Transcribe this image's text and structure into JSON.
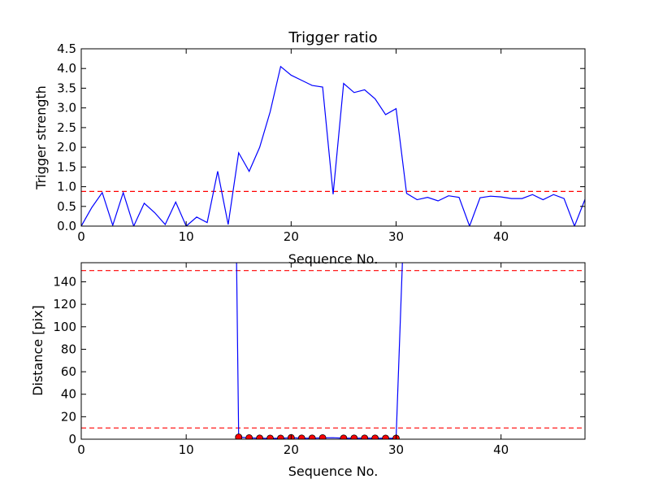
{
  "chart_data": [
    {
      "type": "line",
      "title": "Trigger ratio",
      "xlabel": "Sequence No.",
      "ylabel": "Trigger strength",
      "xlim": [
        0,
        48
      ],
      "ylim": [
        0,
        4.5
      ],
      "xticks": [
        0,
        10,
        20,
        30,
        40
      ],
      "xtick_labels": [
        "0",
        "10",
        "20",
        "30",
        "40"
      ],
      "yticks": [
        0,
        0.5,
        1,
        1.5,
        2,
        2.5,
        3,
        3.5,
        4,
        4.5
      ],
      "ytick_labels": [
        "0.0",
        "0.5",
        "1.0",
        "1.5",
        "2.0",
        "2.5",
        "3.0",
        "3.5",
        "4.0",
        "4.5"
      ],
      "grid": false,
      "series": [
        {
          "color": "#0000ff",
          "x": [
            0,
            1,
            2,
            3,
            4,
            5,
            6,
            7,
            8,
            9,
            10,
            11,
            12,
            13,
            14,
            15,
            16,
            17,
            18,
            19,
            20,
            21,
            22,
            23,
            24,
            25,
            26,
            27,
            28,
            29,
            30,
            31,
            32,
            33,
            34,
            35,
            36,
            37,
            38,
            39,
            40,
            41,
            42,
            43,
            44,
            45,
            46,
            47,
            48
          ],
          "values": [
            0.0,
            0.47,
            0.85,
            0.02,
            0.85,
            0.0,
            0.58,
            0.34,
            0.04,
            0.61,
            0.0,
            0.23,
            0.09,
            1.39,
            0.04,
            1.86,
            1.39,
            2.0,
            2.9,
            4.05,
            3.83,
            3.7,
            3.57,
            3.53,
            0.81,
            3.62,
            3.39,
            3.46,
            3.23,
            2.83,
            2.98,
            0.83,
            0.67,
            0.73,
            0.64,
            0.77,
            0.73,
            0.0,
            0.72,
            0.76,
            0.74,
            0.7,
            0.7,
            0.8,
            0.67,
            0.8,
            0.7,
            0.0,
            0.68
          ]
        }
      ],
      "hlines": [
        {
          "y": 0.88,
          "color": "#ff0000",
          "style": "dashed"
        }
      ]
    },
    {
      "type": "line",
      "title": "",
      "xlabel": "Sequence No.",
      "ylabel": "Distance [pix]",
      "xlim": [
        0,
        48
      ],
      "ylim": [
        0,
        157
      ],
      "xticks": [
        0,
        10,
        20,
        30,
        40
      ],
      "xtick_labels": [
        "0",
        "10",
        "20",
        "30",
        "40"
      ],
      "yticks": [
        0,
        20,
        40,
        60,
        80,
        100,
        120,
        140
      ],
      "ytick_labels": [
        "0",
        "20",
        "40",
        "60",
        "80",
        "100",
        "120",
        "140"
      ],
      "grid": false,
      "series": [
        {
          "color": "#0000ff",
          "x": [
            14.8,
            15,
            16,
            17,
            18,
            19,
            20,
            21,
            22,
            23,
            24,
            25,
            26,
            27,
            28,
            29,
            30,
            30.6
          ],
          "values": [
            157,
            1.8,
            1.2,
            0.9,
            0.8,
            0.8,
            1.3,
            0.9,
            0.9,
            1.2,
            1.3,
            0.9,
            0.9,
            0.9,
            0.9,
            0.8,
            0.8,
            157
          ]
        },
        {
          "color": "#ff0000",
          "marker": "circle",
          "x": [
            15,
            16,
            17,
            18,
            19,
            20,
            21,
            22,
            23,
            25,
            26,
            27,
            28,
            29,
            30
          ],
          "values": [
            1.8,
            1.2,
            0.9,
            0.8,
            0.8,
            1.3,
            0.9,
            0.9,
            1.2,
            0.9,
            0.9,
            0.9,
            0.9,
            0.8,
            0.8
          ]
        }
      ],
      "hlines": [
        {
          "y": 150,
          "color": "#ff0000",
          "style": "dashed"
        },
        {
          "y": 10,
          "color": "#ff0000",
          "style": "dashed"
        }
      ]
    }
  ]
}
